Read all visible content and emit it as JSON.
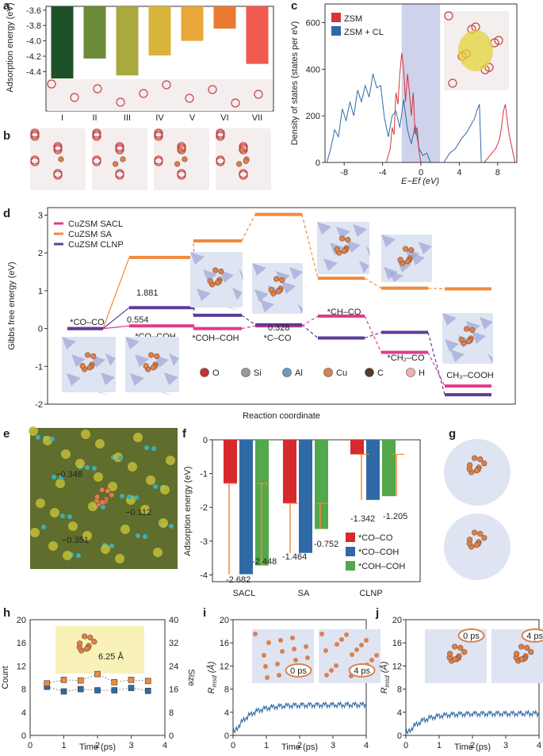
{
  "panels": {
    "a": "a",
    "b": "b",
    "c": "c",
    "d": "d",
    "e": "e",
    "f": "f",
    "g": "g",
    "h": "h",
    "i": "i",
    "j": "j"
  },
  "chart_data": [
    {
      "panel": "a",
      "type": "bar",
      "categories": [
        "I",
        "II",
        "III",
        "IV",
        "V",
        "VI",
        "VII"
      ],
      "values": [
        -4.49,
        -4.23,
        -4.45,
        -4.19,
        -4.0,
        -3.84,
        -4.3
      ],
      "colors": [
        "#1f5128",
        "#6b8a38",
        "#a9a93e",
        "#d9b43a",
        "#e8a73b",
        "#ea7a32",
        "#ef5b4e"
      ],
      "ylabel": "Adsorption energy (eV)",
      "yticks": [
        -3.6,
        -3.8,
        -4.0,
        -4.2,
        -4.4
      ],
      "ylim": [
        -4.5,
        -3.55
      ]
    },
    {
      "panel": "c",
      "type": "area",
      "xlabel": "E−Ef (eV)",
      "ylabel": "Density of states (states per eV)",
      "xticks": [
        -8,
        -4,
        0,
        4,
        8
      ],
      "yticks": [
        0,
        200,
        400,
        600
      ],
      "xlim": [
        -10,
        10
      ],
      "ylim": [
        0,
        680
      ],
      "legend": [
        "ZSM",
        "ZSM + CL"
      ],
      "series": [
        {
          "name": "ZSM",
          "color": "#d8333a",
          "x": [
            -3.6,
            -3.2,
            -3.0,
            -2.8,
            -2.6,
            -2.4,
            -2.2,
            -2.0,
            -1.8,
            -1.6,
            -1.4,
            -1.2,
            -1.0,
            -0.8,
            -0.6,
            -0.4,
            -0.2,
            0.0,
            6.6,
            7.0,
            7.4,
            7.8,
            8.2,
            8.4,
            8.6,
            8.8,
            9.0,
            9.2,
            9.5,
            9.8
          ],
          "y": [
            0,
            60,
            150,
            120,
            300,
            250,
            380,
            470,
            400,
            260,
            380,
            300,
            200,
            300,
            120,
            150,
            50,
            0,
            0,
            20,
            40,
            60,
            100,
            150,
            220,
            250,
            180,
            120,
            60,
            0
          ]
        },
        {
          "name": "ZSM + CL",
          "color": "#2f6aa6",
          "x": [
            -9.8,
            -9.4,
            -9.0,
            -8.6,
            -8.2,
            -7.8,
            -7.4,
            -7.0,
            -6.6,
            -6.2,
            -5.8,
            -5.4,
            -5.0,
            -4.6,
            -4.2,
            -3.8,
            -3.4,
            -3.0,
            -2.6,
            -2.2,
            -1.8,
            -1.4,
            -1.0,
            -0.6,
            -0.2,
            0.2,
            0.6,
            1.0,
            2.4,
            3.0,
            3.6,
            4.2,
            4.8,
            5.2,
            5.6,
            5.9,
            6.1,
            6.3
          ],
          "y": [
            0,
            60,
            140,
            110,
            230,
            180,
            260,
            200,
            310,
            260,
            330,
            280,
            380,
            320,
            330,
            190,
            110,
            200,
            220,
            150,
            270,
            140,
            80,
            160,
            60,
            30,
            40,
            0,
            0,
            40,
            60,
            100,
            130,
            160,
            190,
            230,
            250,
            0
          ]
        }
      ],
      "shaded_region": [
        -2.0,
        2.0
      ]
    },
    {
      "panel": "d",
      "type": "line",
      "xlabel": "Reaction coordinate",
      "ylabel": "Gibbs free energy (eV)",
      "yticks": [
        -2,
        -1,
        0,
        1,
        2,
        3
      ],
      "ylim": [
        -2,
        3.2
      ],
      "states": [
        "*CO−CO",
        "*CO−COH",
        "*COH−COH",
        "*C−CO",
        "*CH−CO",
        "*CH2−CO",
        "CH3−COOH"
      ],
      "series": [
        {
          "name": "CuZSM SACL",
          "color": "#e23a8a",
          "values": [
            0.0,
            0.07,
            0.0,
            0.07,
            0.33,
            -0.63,
            -1.52
          ]
        },
        {
          "name": "CuZSM SA",
          "color": "#f08a3c",
          "values": [
            0.0,
            1.881,
            2.32,
            3.02,
            1.33,
            1.07,
            1.05
          ]
        },
        {
          "name": "CuZSM CLNP",
          "color": "#5a3f99",
          "values": [
            0.0,
            0.554,
            0.35,
            0.1,
            -0.25,
            -0.1,
            -1.75
          ]
        }
      ],
      "annotations": [
        "1.881",
        "0.554",
        "0.328"
      ],
      "atoms": [
        "O",
        "Si",
        "Al",
        "Cu",
        "C",
        "H"
      ]
    },
    {
      "panel": "f",
      "type": "bar",
      "categories": [
        "SACL",
        "SA",
        "CLNP"
      ],
      "ylabel": "Adsorption energy (eV)",
      "yticks": [
        0,
        -1,
        -2,
        -3,
        -4
      ],
      "ylim": [
        -4.2,
        0
      ],
      "series": [
        {
          "name": "*CO−CO",
          "color": "#d72a2e",
          "values": [
            -1.29,
            -1.88,
            -0.43
          ]
        },
        {
          "name": "*CO−COH",
          "color": "#2f6aa6",
          "values": [
            -3.98,
            -3.35,
            -1.78
          ]
        },
        {
          "name": "*COH−COH",
          "color": "#52a84a",
          "values": [
            -3.72,
            -2.64,
            -1.67
          ]
        }
      ],
      "diffs": [
        "-2.682",
        "-2.448",
        "-1.464",
        "-0.752",
        "-1.342",
        "-1.205"
      ]
    },
    {
      "panel": "h",
      "type": "scatter",
      "xlabel": "Time (ps)",
      "ylabel_left": "Count",
      "ylabel_right": "Size",
      "xticks": [
        0,
        1,
        2,
        3,
        4
      ],
      "yticks_left": [
        0,
        4,
        8,
        12,
        16,
        20
      ],
      "yticks_right": [
        0,
        8,
        16,
        24,
        32,
        40
      ],
      "distance": "6.25 Å",
      "series": [
        {
          "name": "Count",
          "color": "#2f6aa6",
          "x": [
            0.5,
            1.0,
            1.5,
            2.0,
            2.5,
            3.0,
            3.5
          ],
          "y": [
            8.4,
            7.6,
            8.0,
            7.8,
            7.8,
            8.2,
            7.7
          ]
        },
        {
          "name": "Size",
          "color": "#f08a3c",
          "x": [
            0.5,
            1.0,
            1.5,
            2.0,
            2.5,
            3.0,
            3.5
          ],
          "y": [
            9.0,
            9.6,
            9.5,
            10.6,
            9.2,
            9.6,
            9.4
          ]
        }
      ]
    },
    {
      "panel": "i",
      "type": "line",
      "xlabel": "Time (ps)",
      "ylabel": "Rmsd (Å)",
      "xticks": [
        0,
        1,
        2,
        3,
        4
      ],
      "yticks": [
        0,
        4,
        8,
        12,
        16,
        20
      ],
      "labels": [
        "0 ps",
        "4 ps"
      ]
    },
    {
      "panel": "j",
      "type": "line",
      "xlabel": "Time (ps)",
      "ylabel": "Rmsd (Å)",
      "xticks": [
        0,
        1,
        2,
        3,
        4
      ],
      "yticks": [
        0,
        4,
        8,
        12,
        16,
        20
      ],
      "labels": [
        "0 ps",
        "4 ps"
      ]
    }
  ],
  "text": {
    "a_ylabel": "Adsorption energy (eV)",
    "c_ylabel": "Density of states (states per eV)",
    "c_xlabel": "E−Ef (eV)",
    "c_leg1": "ZSM",
    "c_leg2": "ZSM + CL",
    "d_ylabel": "Gibbs free energy (eV)",
    "d_xlabel": "Reaction coordinate",
    "d_leg1": "CuZSM SACL",
    "d_leg2": "CuZSM SA",
    "d_leg3": "CuZSM CLNP",
    "d_s1": "*CO–CO",
    "d_s2": "*CO–COH",
    "d_s3": "*COH–COH",
    "d_s4": "*C–CO",
    "d_s5": "*CH–CO",
    "d_s6": "*CH₂–CO",
    "d_s7": "CH₃–COOH",
    "d_v1": "1.881",
    "d_v2": "0.554",
    "d_v3": "0.328",
    "d_atoms": [
      "O",
      "Si",
      "Al",
      "Cu",
      "C",
      "H"
    ],
    "e_c1": "−0.348",
    "e_c2": "−0.112",
    "e_c3": "−0.351",
    "f_ylabel": "Adsorption energy (eV)",
    "f_cat1": "SACL",
    "f_cat2": "SA",
    "f_cat3": "CLNP",
    "f_leg1": "*CO–CO",
    "f_leg2": "*CO–COH",
    "f_leg3": "*COH–COH",
    "h_count": "Count",
    "h_size": "Size",
    "h_xlabel": "Time (ps)",
    "h_dist": "6.25 Å",
    "i_xlabel": "Time (ps)",
    "j_xlabel": "Time (ps)",
    "ps0": "0 ps",
    "ps4": "4 ps"
  }
}
